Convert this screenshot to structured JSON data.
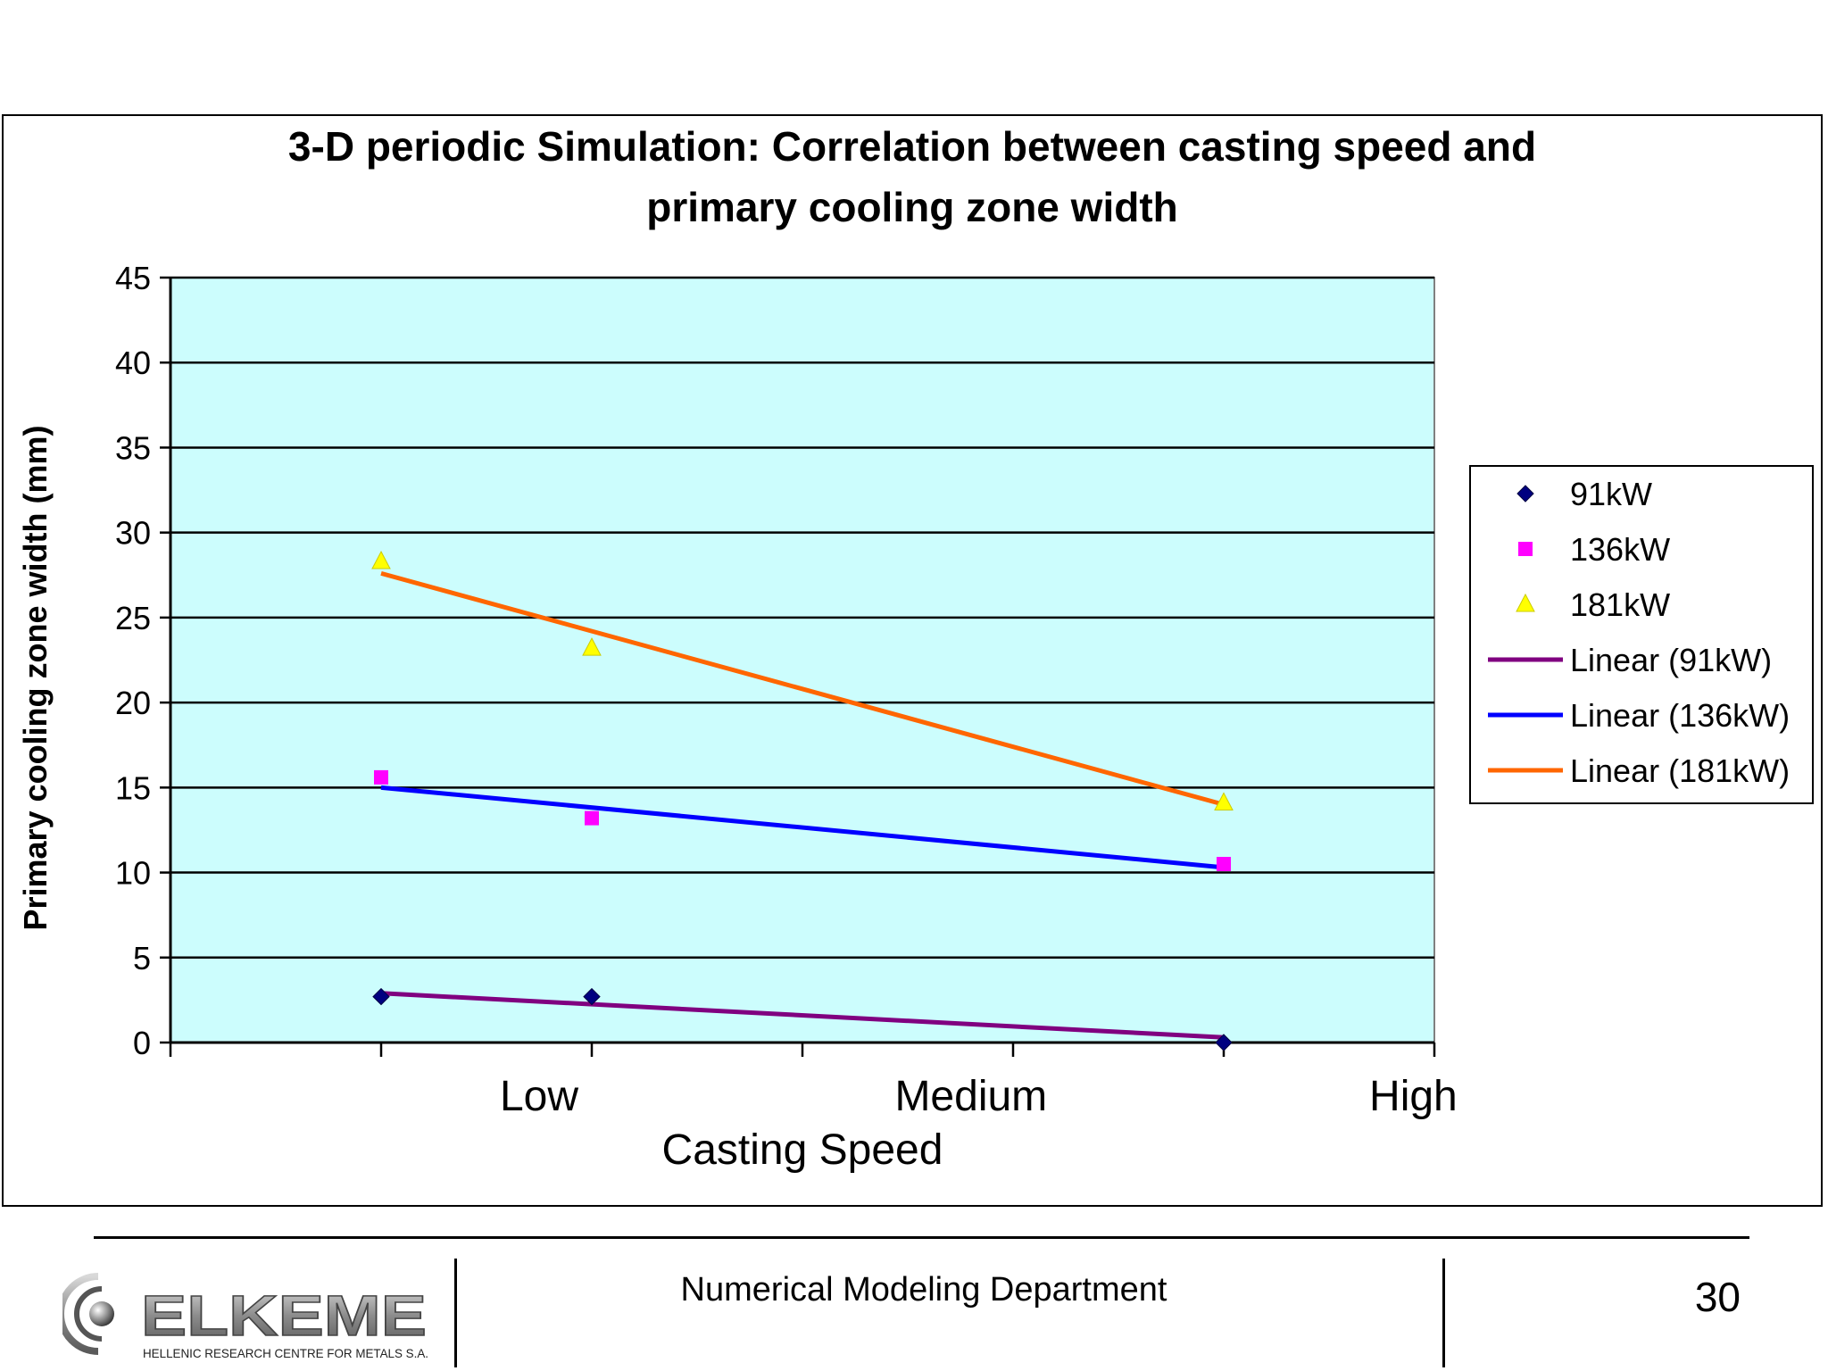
{
  "chart_data": {
    "type": "scatter",
    "title": "3-D periodic Simulation: Correlation between casting speed and primary cooling zone width",
    "title_lines": [
      "3-D periodic Simulation: Correlation between casting speed and",
      "primary cooling zone width"
    ],
    "xlabel": "Casting Speed",
    "ylabel": "Primary cooling zone width (mm)",
    "x_tick_labels": [
      "Low",
      "Medium",
      "High"
    ],
    "x_tick_label_values": [
      1.75,
      3.8,
      5.9
    ],
    "x_range": [
      0,
      6
    ],
    "ylim": [
      0,
      45
    ],
    "y_ticks": [
      0,
      5,
      10,
      15,
      20,
      25,
      30,
      35,
      40,
      45
    ],
    "grid": "horizontal",
    "plot_background": "#ccfdfd",
    "legend_position": "right",
    "series": [
      {
        "name": "91kW",
        "marker": "diamond",
        "color": "#000080",
        "points": [
          [
            1,
            2.7
          ],
          [
            2,
            2.7
          ],
          [
            5,
            0
          ]
        ]
      },
      {
        "name": "136kW",
        "marker": "square",
        "color": "#ff00ff",
        "points": [
          [
            1,
            15.6
          ],
          [
            2,
            13.2
          ],
          [
            5,
            10.5
          ]
        ]
      },
      {
        "name": "181kW",
        "marker": "triangle",
        "color": "#ffff00",
        "points": [
          [
            1,
            28.3
          ],
          [
            2,
            23.2
          ],
          [
            5,
            14.1
          ]
        ]
      }
    ],
    "trendlines": [
      {
        "name": "Linear (91kW)",
        "color": "#800080",
        "from": [
          1,
          2.9
        ],
        "to": [
          5,
          0.3
        ]
      },
      {
        "name": "Linear (136kW)",
        "color": "#0000ff",
        "from": [
          1,
          15.0
        ],
        "to": [
          5,
          10.3
        ]
      },
      {
        "name": "Linear (181kW)",
        "color": "#ff6600",
        "from": [
          1,
          27.6
        ],
        "to": [
          5,
          14.0
        ]
      }
    ]
  },
  "footer": {
    "logo_name": "ELKEME",
    "logo_subtitle": "HELLENIC RESEARCH CENTRE FOR METALS S.A.",
    "department": "Numerical Modeling Department",
    "page_number": "30"
  }
}
